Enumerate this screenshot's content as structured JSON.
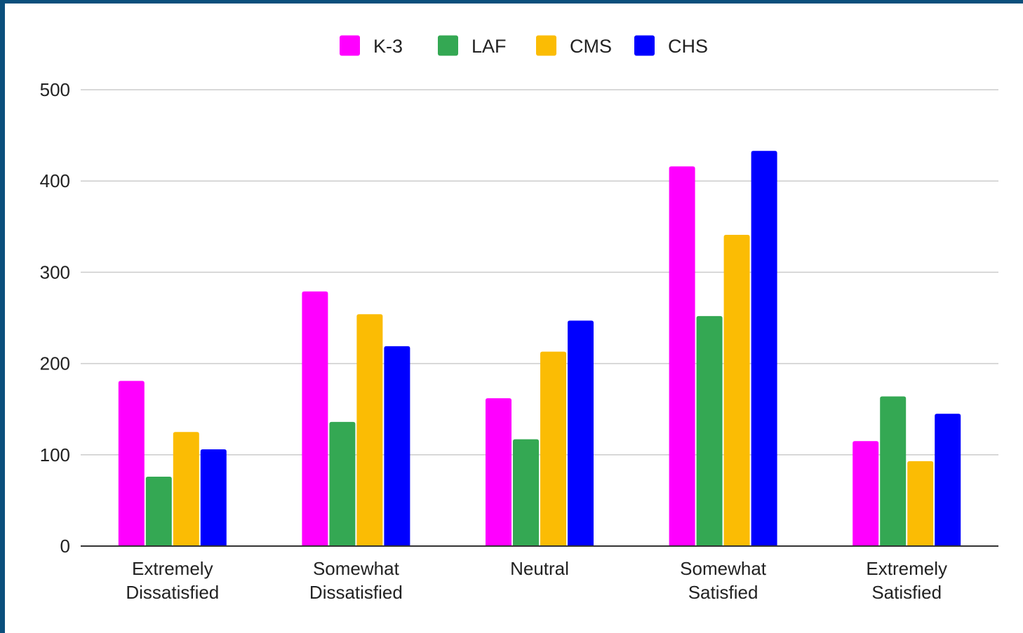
{
  "chart_data": {
    "type": "bar",
    "categories": [
      [
        "Extremely",
        "Dissatisfied"
      ],
      [
        "Somewhat",
        "Dissatisfied"
      ],
      [
        "Neutral"
      ],
      [
        "Somewhat",
        "Satisfied"
      ],
      [
        "Extremely",
        "Satisfied"
      ]
    ],
    "series": [
      {
        "name": "K-3",
        "color": "#ff00ff",
        "values": [
          181,
          279,
          162,
          416,
          115
        ]
      },
      {
        "name": "LAF",
        "color": "#34a853",
        "values": [
          76,
          136,
          117,
          252,
          164
        ]
      },
      {
        "name": "CMS",
        "color": "#fbbc04",
        "values": [
          125,
          254,
          213,
          341,
          93
        ]
      },
      {
        "name": "CHS",
        "color": "#0000ff",
        "values": [
          106,
          219,
          247,
          433,
          145
        ]
      }
    ],
    "ylim": [
      0,
      500
    ],
    "yticks": [
      0,
      100,
      200,
      300,
      400,
      500
    ],
    "grid": true,
    "legend_position": "top-center",
    "title": "",
    "xlabel": "",
    "ylabel": ""
  }
}
